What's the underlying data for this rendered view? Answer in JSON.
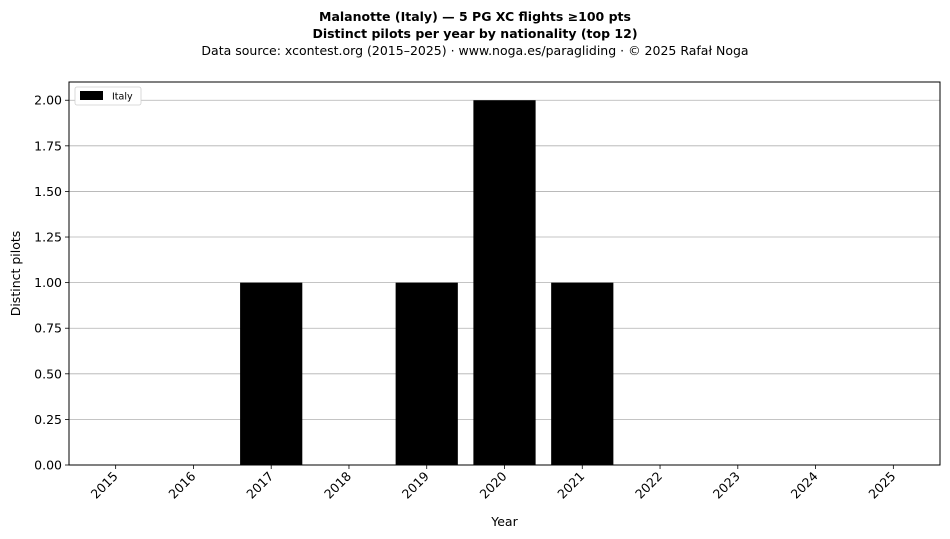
{
  "title_line1": "Malanotte (Italy)  —  5 PG XC flights ≥100 pts",
  "title_line2": "Distinct pilots per year by nationality (top 12)",
  "title_line3": "Data source: xcontest.org (2015–2025)  ·  www.noga.es/paragliding  ·  © 2025 Rafał Noga",
  "chart_data": {
    "type": "bar",
    "stacked": true,
    "categories": [
      "2015",
      "2016",
      "2017",
      "2018",
      "2019",
      "2020",
      "2021",
      "2022",
      "2023",
      "2024",
      "2025"
    ],
    "series": [
      {
        "name": "Italy",
        "color": "#000000",
        "values": [
          0,
          0,
          1,
          0,
          1,
          2,
          1,
          0,
          0,
          0,
          0
        ]
      }
    ],
    "xlabel": "Year",
    "ylabel": "Distinct pilots",
    "ylim": [
      0,
      2.1
    ],
    "yticks": [
      "0.00",
      "0.25",
      "0.50",
      "0.75",
      "1.00",
      "1.25",
      "1.50",
      "1.75",
      "2.00"
    ],
    "grid": "y",
    "legend_position": "top-left"
  }
}
